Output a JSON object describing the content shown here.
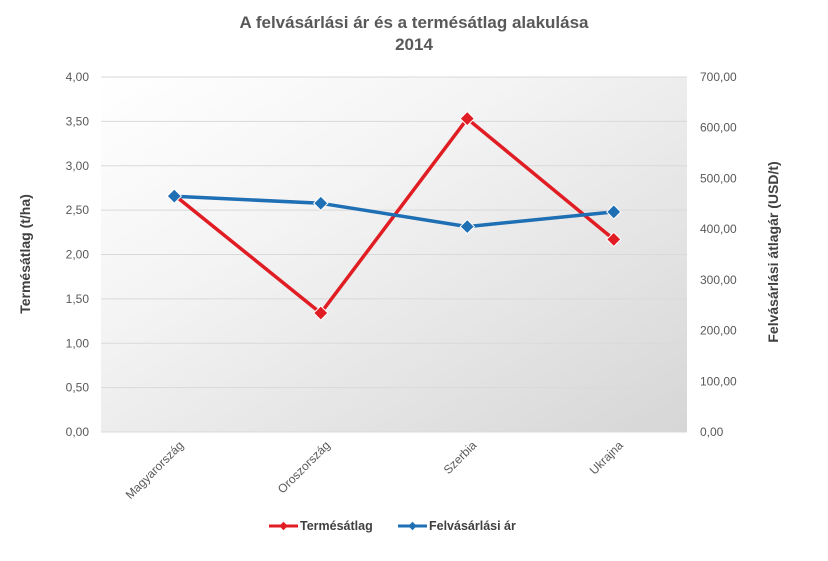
{
  "chart_data": {
    "type": "line",
    "title": "A felvásárlási ár és a termésátlag alakulása",
    "subtitle": "2014",
    "categories": [
      "Magyarország",
      "Oroszország",
      "Szerbia",
      "Ukrajna"
    ],
    "series": [
      {
        "name": "Termésátlag",
        "axis": "left",
        "color": "#e11d24",
        "marker": "diamond",
        "values": [
          2.67,
          1.34,
          3.53,
          2.17
        ]
      },
      {
        "name": "Felvásárlási ár",
        "axis": "right",
        "color": "#1f6fb5",
        "marker": "diamond",
        "values": [
          465,
          451,
          405,
          434
        ]
      }
    ],
    "y_left": {
      "label": "Termésátlag (t/ha)",
      "ylim": [
        0,
        4
      ],
      "ticks": [
        "0,00",
        "0,50",
        "1,00",
        "1,50",
        "2,00",
        "2,50",
        "3,00",
        "3,50",
        "4,00"
      ]
    },
    "y_right": {
      "label": "Felvásárlási átlagár (USD/t)",
      "ylim": [
        0,
        700
      ],
      "ticks": [
        "0,00",
        "100,00",
        "200,00",
        "300,00",
        "400,00",
        "500,00",
        "600,00",
        "700,00"
      ]
    },
    "grid": true,
    "legend_position": "bottom"
  }
}
